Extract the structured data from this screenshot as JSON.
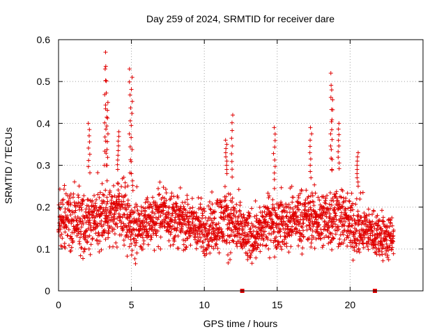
{
  "chart_data": {
    "type": "scatter",
    "title": "Day 259 of 2024, SRMTID for receiver dare",
    "xlabel": "GPS time / hours",
    "ylabel": "SRMTID / TECUs",
    "xlim": [
      0,
      25
    ],
    "ylim": [
      0,
      0.6
    ],
    "x_ticks": [
      "0",
      "5",
      "10",
      "15",
      "20"
    ],
    "x_tick_values": [
      0,
      5,
      10,
      15,
      20
    ],
    "y_ticks": [
      "0",
      "0.1",
      "0.2",
      "0.3",
      "0.4",
      "0.5",
      "0.6"
    ],
    "y_tick_values": [
      0,
      0.1,
      0.2,
      0.3,
      0.4,
      0.5,
      0.6
    ],
    "grid": true,
    "marker": "+",
    "color": "#e00000",
    "time_span_hours": [
      0,
      23
    ],
    "typical_range": [
      0.05,
      0.3
    ],
    "baseline_envelope": [
      [
        0.0,
        0.08,
        0.26
      ],
      [
        0.5,
        0.07,
        0.27
      ],
      [
        1.0,
        0.06,
        0.28
      ],
      [
        1.5,
        0.06,
        0.27
      ],
      [
        2.0,
        0.05,
        0.28
      ],
      [
        2.5,
        0.06,
        0.29
      ],
      [
        3.0,
        0.07,
        0.3
      ],
      [
        3.5,
        0.07,
        0.3
      ],
      [
        4.0,
        0.07,
        0.29
      ],
      [
        4.5,
        0.07,
        0.29
      ],
      [
        5.0,
        0.04,
        0.28
      ],
      [
        5.5,
        0.05,
        0.25
      ],
      [
        6.0,
        0.07,
        0.25
      ],
      [
        6.5,
        0.08,
        0.27
      ],
      [
        7.0,
        0.09,
        0.28
      ],
      [
        7.5,
        0.09,
        0.28
      ],
      [
        8.0,
        0.08,
        0.26
      ],
      [
        8.5,
        0.08,
        0.25
      ],
      [
        9.0,
        0.07,
        0.25
      ],
      [
        9.5,
        0.06,
        0.25
      ],
      [
        10.0,
        0.05,
        0.24
      ],
      [
        10.5,
        0.06,
        0.25
      ],
      [
        11.0,
        0.06,
        0.27
      ],
      [
        11.5,
        0.06,
        0.28
      ],
      [
        12.0,
        0.05,
        0.27
      ],
      [
        12.5,
        0.04,
        0.24
      ],
      [
        13.0,
        0.03,
        0.22
      ],
      [
        13.5,
        0.05,
        0.23
      ],
      [
        14.0,
        0.06,
        0.24
      ],
      [
        14.5,
        0.07,
        0.26
      ],
      [
        15.0,
        0.06,
        0.27
      ],
      [
        15.5,
        0.06,
        0.26
      ],
      [
        16.0,
        0.07,
        0.27
      ],
      [
        16.5,
        0.07,
        0.28
      ],
      [
        17.0,
        0.08,
        0.27
      ],
      [
        17.5,
        0.07,
        0.27
      ],
      [
        18.0,
        0.06,
        0.28
      ],
      [
        18.5,
        0.07,
        0.28
      ],
      [
        19.0,
        0.07,
        0.3
      ],
      [
        19.5,
        0.07,
        0.28
      ],
      [
        20.0,
        0.05,
        0.26
      ],
      [
        20.5,
        0.05,
        0.25
      ],
      [
        21.0,
        0.06,
        0.24
      ],
      [
        21.5,
        0.06,
        0.22
      ],
      [
        22.0,
        0.05,
        0.22
      ],
      [
        22.5,
        0.04,
        0.21
      ],
      [
        23.0,
        0.05,
        0.2
      ]
    ],
    "peak_events": [
      {
        "x": 2.1,
        "y": 0.4
      },
      {
        "x": 3.2,
        "y": 0.57
      },
      {
        "x": 3.25,
        "y": 0.53
      },
      {
        "x": 3.35,
        "y": 0.45
      },
      {
        "x": 4.1,
        "y": 0.38
      },
      {
        "x": 4.9,
        "y": 0.53
      },
      {
        "x": 5.0,
        "y": 0.51
      },
      {
        "x": 11.5,
        "y": 0.36
      },
      {
        "x": 11.9,
        "y": 0.42
      },
      {
        "x": 14.8,
        "y": 0.39
      },
      {
        "x": 17.3,
        "y": 0.39
      },
      {
        "x": 18.7,
        "y": 0.52
      },
      {
        "x": 18.75,
        "y": 0.48
      },
      {
        "x": 19.2,
        "y": 0.4
      },
      {
        "x": 20.5,
        "y": 0.33
      }
    ],
    "zero_points": [
      {
        "x": 12.6,
        "y": 0.0
      },
      {
        "x": 21.7,
        "y": 0.0
      }
    ]
  }
}
